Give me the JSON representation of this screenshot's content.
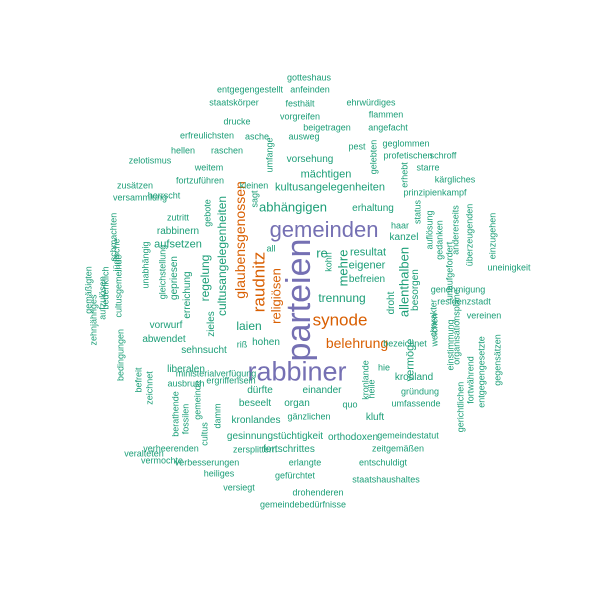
{
  "colors": {
    "teal": "#1b9e77",
    "orange": "#d95f02",
    "purple": "#7570b3"
  },
  "words": [
    {
      "text": "parteien",
      "color": "purple",
      "vertical": true
    },
    {
      "text": "rabbiner",
      "color": "purple",
      "vertical": false
    },
    {
      "text": "gemeinden",
      "color": "purple",
      "vertical": false
    },
    {
      "text": "synode",
      "color": "orange",
      "vertical": false
    },
    {
      "text": "belehrung",
      "color": "orange",
      "vertical": false
    },
    {
      "text": "raudnitz",
      "color": "orange",
      "vertical": true
    },
    {
      "text": "glaubensgenossen",
      "color": "orange",
      "vertical": true
    },
    {
      "text": "religiösen",
      "color": "orange",
      "vertical": true
    },
    {
      "text": "cultusangelegenheiten",
      "color": "teal",
      "vertical": true
    },
    {
      "text": "abhängigen",
      "color": "teal",
      "vertical": false
    },
    {
      "text": "kultusangelegenheiten",
      "color": "teal",
      "vertical": false
    },
    {
      "text": "mächtigen",
      "color": "teal",
      "vertical": false
    },
    {
      "text": "vorsehung",
      "color": "teal",
      "vertical": false
    },
    {
      "text": "trennung",
      "color": "teal",
      "vertical": false
    },
    {
      "text": "resultat",
      "color": "teal",
      "vertical": false
    },
    {
      "text": "eigener",
      "color": "teal",
      "vertical": false
    },
    {
      "text": "befreien",
      "color": "teal",
      "vertical": false
    },
    {
      "text": "erhaltung",
      "color": "teal",
      "vertical": false
    },
    {
      "text": "kanzel",
      "color": "teal",
      "vertical": false
    },
    {
      "text": "haar",
      "color": "teal",
      "vertical": false
    },
    {
      "text": "re",
      "color": "teal",
      "vertical": false
    },
    {
      "text": "mehre",
      "color": "teal",
      "vertical": true
    },
    {
      "text": "kohn",
      "color": "teal",
      "vertical": true
    },
    {
      "text": "allenthalben",
      "color": "teal",
      "vertical": true
    },
    {
      "text": "droht",
      "color": "teal",
      "vertical": true
    },
    {
      "text": "besorgen",
      "color": "teal",
      "vertical": true
    },
    {
      "text": "laien",
      "color": "teal",
      "vertical": false
    },
    {
      "text": "hohen",
      "color": "teal",
      "vertical": false
    },
    {
      "text": "sehnsucht",
      "color": "teal",
      "vertical": false
    },
    {
      "text": "liberalen",
      "color": "teal",
      "vertical": false
    },
    {
      "text": "ausbruch",
      "color": "teal",
      "vertical": false
    },
    {
      "text": "regelung",
      "color": "teal",
      "vertical": true
    },
    {
      "text": "erreichung",
      "color": "teal",
      "vertical": true
    },
    {
      "text": "gepriesen",
      "color": "teal",
      "vertical": true
    },
    {
      "text": "zieles",
      "color": "teal",
      "vertical": true
    },
    {
      "text": "aufsetzen",
      "color": "teal",
      "vertical": false
    },
    {
      "text": "rabbinern",
      "color": "teal",
      "vertical": false
    },
    {
      "text": "zutritt",
      "color": "teal",
      "vertical": false
    },
    {
      "text": "herrscht",
      "color": "teal",
      "vertical": false
    },
    {
      "text": "weitem",
      "color": "teal",
      "vertical": false
    },
    {
      "text": "fortzuführen",
      "color": "teal",
      "vertical": false
    },
    {
      "text": "kleinen",
      "color": "teal",
      "vertical": false
    },
    {
      "text": "sagt",
      "color": "teal",
      "vertical": true
    },
    {
      "text": "gebote",
      "color": "teal",
      "vertical": true
    },
    {
      "text": "all",
      "color": "teal",
      "vertical": false
    },
    {
      "text": "riß",
      "color": "teal",
      "vertical": false
    },
    {
      "text": "abwendet",
      "color": "teal",
      "vertical": false
    },
    {
      "text": "vorwurf",
      "color": "teal",
      "vertical": false
    },
    {
      "text": "bedenklich",
      "color": "teal",
      "vertical": true
    },
    {
      "text": "gleichstellung",
      "color": "teal",
      "vertical": true
    },
    {
      "text": "unabhängig",
      "color": "teal",
      "vertical": true
    },
    {
      "text": "versammlung",
      "color": "teal",
      "vertical": false
    },
    {
      "text": "zusätzen",
      "color": "teal",
      "vertical": false
    },
    {
      "text": "zelotismus",
      "color": "teal",
      "vertical": false
    },
    {
      "text": "hellen",
      "color": "teal",
      "vertical": false
    },
    {
      "text": "raschen",
      "color": "teal",
      "vertical": false
    },
    {
      "text": "erfreulichsten",
      "color": "teal",
      "vertical": false
    },
    {
      "text": "asche",
      "color": "teal",
      "vertical": false
    },
    {
      "text": "ausweg",
      "color": "teal",
      "vertical": false
    },
    {
      "text": "beigetragen",
      "color": "teal",
      "vertical": false
    },
    {
      "text": "drucke",
      "color": "teal",
      "vertical": false
    },
    {
      "text": "vorgreifen",
      "color": "teal",
      "vertical": false
    },
    {
      "text": "staatskörper",
      "color": "teal",
      "vertical": false
    },
    {
      "text": "festhält",
      "color": "teal",
      "vertical": false
    },
    {
      "text": "entgegengestellt",
      "color": "teal",
      "vertical": false
    },
    {
      "text": "anfeinden",
      "color": "teal",
      "vertical": false
    },
    {
      "text": "gotteshaus",
      "color": "teal",
      "vertical": false
    },
    {
      "text": "ehrwürdiges",
      "color": "teal",
      "vertical": false
    },
    {
      "text": "flammen",
      "color": "teal",
      "vertical": false
    },
    {
      "text": "angefacht",
      "color": "teal",
      "vertical": false
    },
    {
      "text": "geglommen",
      "color": "teal",
      "vertical": false
    },
    {
      "text": "profetischen",
      "color": "teal",
      "vertical": false
    },
    {
      "text": "schroff",
      "color": "teal",
      "vertical": false
    },
    {
      "text": "starre",
      "color": "teal",
      "vertical": false
    },
    {
      "text": "kärgliches",
      "color": "teal",
      "vertical": false
    },
    {
      "text": "prinzipienkampf",
      "color": "teal",
      "vertical": false
    },
    {
      "text": "pest",
      "color": "teal",
      "vertical": false
    },
    {
      "text": "umfange",
      "color": "teal",
      "vertical": true
    },
    {
      "text": "gelebten",
      "color": "teal",
      "vertical": true
    },
    {
      "text": "erhebt",
      "color": "teal",
      "vertical": true
    },
    {
      "text": "status",
      "color": "teal",
      "vertical": true
    },
    {
      "text": "auflösung",
      "color": "teal",
      "vertical": true
    },
    {
      "text": "gedanken",
      "color": "teal",
      "vertical": true
    },
    {
      "text": "andererseits",
      "color": "teal",
      "vertical": true
    },
    {
      "text": "überzeugenden",
      "color": "teal",
      "vertical": true
    },
    {
      "text": "einzugehen",
      "color": "teal",
      "vertical": true
    },
    {
      "text": "unaufgefordert",
      "color": "teal",
      "vertical": true
    },
    {
      "text": "genehmigung",
      "color": "teal",
      "vertical": false
    },
    {
      "text": "residenzstadt",
      "color": "teal",
      "vertical": false
    },
    {
      "text": "vereinen",
      "color": "teal",
      "vertical": false
    },
    {
      "text": "uneinigkeit",
      "color": "teal",
      "vertical": false
    },
    {
      "text": "gegensätzen",
      "color": "teal",
      "vertical": true
    },
    {
      "text": "entgegengesetzte",
      "color": "teal",
      "vertical": true
    },
    {
      "text": "organisationspläne",
      "color": "teal",
      "vertical": true
    },
    {
      "text": "einstimmung",
      "color": "teal",
      "vertical": true
    },
    {
      "text": "fortwährend",
      "color": "teal",
      "vertical": true
    },
    {
      "text": "gerichtlichen",
      "color": "teal",
      "vertical": true
    },
    {
      "text": "weichen",
      "color": "teal",
      "vertical": true
    },
    {
      "text": "charakter",
      "color": "teal",
      "vertical": true
    },
    {
      "text": "vermöge",
      "color": "teal",
      "vertical": true
    },
    {
      "text": "kronland",
      "color": "teal",
      "vertical": false
    },
    {
      "text": "gründung",
      "color": "teal",
      "vertical": false
    },
    {
      "text": "umfassende",
      "color": "teal",
      "vertical": false
    },
    {
      "text": "bezeichnet",
      "color": "teal",
      "vertical": false
    },
    {
      "text": "hie",
      "color": "teal",
      "vertical": false
    },
    {
      "text": "kronlande",
      "color": "teal",
      "vertical": true
    },
    {
      "text": "heile",
      "color": "teal",
      "vertical": true
    },
    {
      "text": "quo",
      "color": "teal",
      "vertical": false
    },
    {
      "text": "dürfte",
      "color": "teal",
      "vertical": false
    },
    {
      "text": "einander",
      "color": "teal",
      "vertical": false
    },
    {
      "text": "beseelt",
      "color": "teal",
      "vertical": false
    },
    {
      "text": "organ",
      "color": "teal",
      "vertical": false
    },
    {
      "text": "kronlandes",
      "color": "teal",
      "vertical": false
    },
    {
      "text": "gänzlichen",
      "color": "teal",
      "vertical": false
    },
    {
      "text": "kluft",
      "color": "teal",
      "vertical": false
    },
    {
      "text": "gesinnungstüchtigkeit",
      "color": "teal",
      "vertical": false
    },
    {
      "text": "orthodoxen",
      "color": "teal",
      "vertical": false
    },
    {
      "text": "fortschrittes",
      "color": "teal",
      "vertical": false
    },
    {
      "text": "gemeindestatut",
      "color": "teal",
      "vertical": false
    },
    {
      "text": "zeitgemäßen",
      "color": "teal",
      "vertical": false
    },
    {
      "text": "zersplittern",
      "color": "teal",
      "vertical": false
    },
    {
      "text": "erlangte",
      "color": "teal",
      "vertical": false
    },
    {
      "text": "entschuldigt",
      "color": "teal",
      "vertical": false
    },
    {
      "text": "verbesserungen",
      "color": "teal",
      "vertical": false
    },
    {
      "text": "verheerenden",
      "color": "teal",
      "vertical": false
    },
    {
      "text": "vermochte",
      "color": "teal",
      "vertical": false
    },
    {
      "text": "veralteten",
      "color": "teal",
      "vertical": false
    },
    {
      "text": "heiliges",
      "color": "teal",
      "vertical": false
    },
    {
      "text": "gefürchtet",
      "color": "teal",
      "vertical": false
    },
    {
      "text": "staatshaushaltes",
      "color": "teal",
      "vertical": false
    },
    {
      "text": "versiegt",
      "color": "teal",
      "vertical": false
    },
    {
      "text": "drohenderen",
      "color": "teal",
      "vertical": false
    },
    {
      "text": "gemeindebedürfnisse",
      "color": "teal",
      "vertical": false
    },
    {
      "text": "ergriffensein",
      "color": "teal",
      "vertical": false
    },
    {
      "text": "ministerialverfügung",
      "color": "teal",
      "vertical": false
    },
    {
      "text": "damm",
      "color": "teal",
      "vertical": true
    },
    {
      "text": "gemeinde",
      "color": "teal",
      "vertical": true
    },
    {
      "text": "cultus",
      "color": "teal",
      "vertical": true
    },
    {
      "text": "fossilen",
      "color": "teal",
      "vertical": true
    },
    {
      "text": "berathende",
      "color": "teal",
      "vertical": true
    },
    {
      "text": "zeichnet",
      "color": "teal",
      "vertical": true
    },
    {
      "text": "befreit",
      "color": "teal",
      "vertical": true
    },
    {
      "text": "bedingungen",
      "color": "teal",
      "vertical": true
    },
    {
      "text": "schmachten",
      "color": "teal",
      "vertical": true
    },
    {
      "text": "jüdische",
      "color": "teal",
      "vertical": true
    },
    {
      "text": "cultusgemeinde",
      "color": "teal",
      "vertical": true
    },
    {
      "text": "aufzulösen",
      "color": "teal",
      "vertical": true
    },
    {
      "text": "gemäßigten",
      "color": "teal",
      "vertical": true
    },
    {
      "text": "zehnjähriges",
      "color": "teal",
      "vertical": true
    },
    {
      "text": "auszuarten",
      "color": "teal",
      "vertical": true
    },
    {
      "text": "gänzliches",
      "color": "teal",
      "vertical": true
    }
  ]
}
